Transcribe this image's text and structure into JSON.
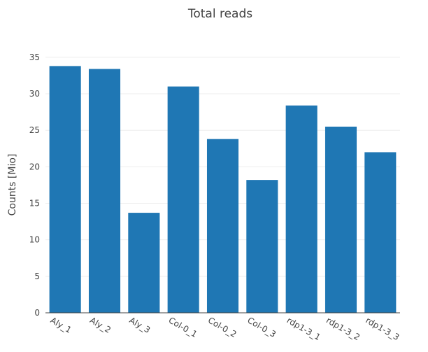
{
  "chart_data": {
    "type": "bar",
    "title": "Total reads",
    "xlabel": "",
    "ylabel": "Counts [Mio]",
    "categories": [
      "Aly_1",
      "Aly_2",
      "Aly_3",
      "Col-0_1",
      "Col-0_2",
      "Col-0_3",
      "rdp1-3_1",
      "rdp1-3_2",
      "rdp1-3_3"
    ],
    "series": [
      {
        "values": [
          33.8,
          33.4,
          13.7,
          31.0,
          23.8,
          18.2,
          28.4,
          25.5,
          22.0
        ]
      }
    ],
    "ylim": [
      0,
      37
    ],
    "yticks": [
      0,
      5,
      10,
      15,
      20,
      25,
      30,
      35
    ],
    "grid": true,
    "legend": "none",
    "bar_color": "#1f77b4"
  }
}
